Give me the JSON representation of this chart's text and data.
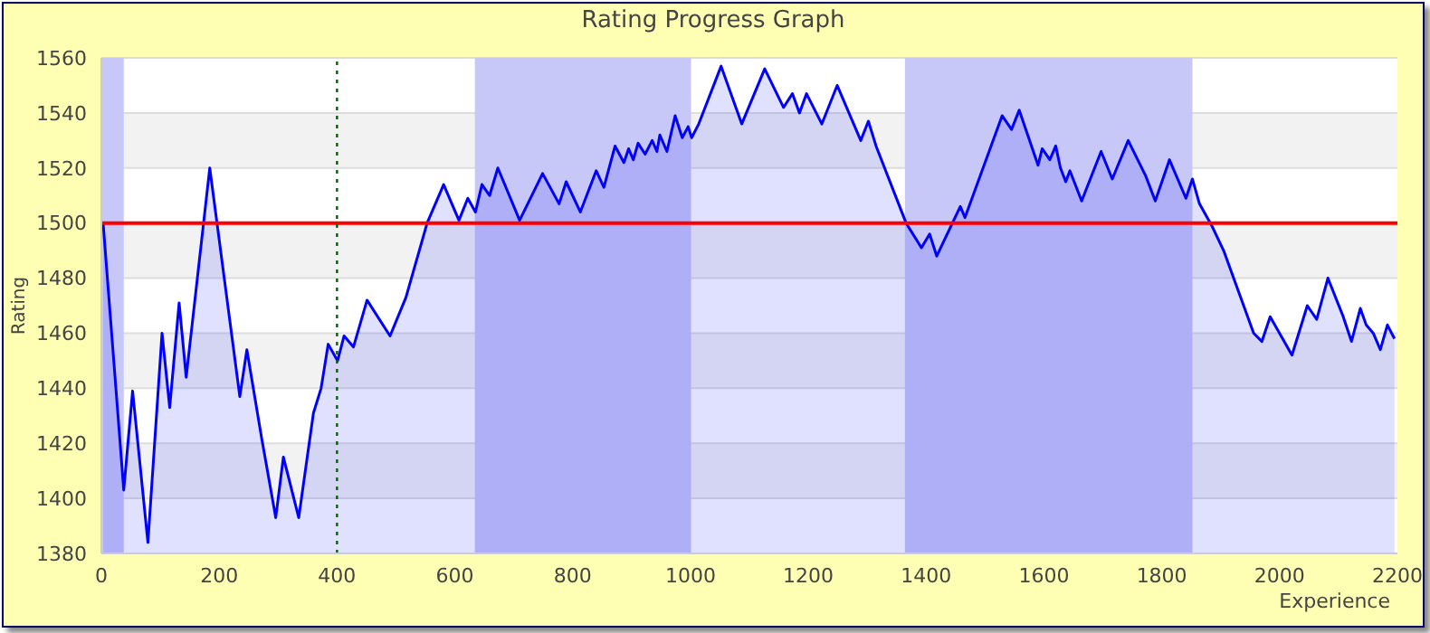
{
  "chart_data": {
    "type": "area",
    "title": "Rating Progress Graph",
    "xlabel": "Experience",
    "ylabel": "Rating",
    "xlim": [
      0,
      2200
    ],
    "xticks": [
      0,
      200,
      400,
      600,
      800,
      1000,
      1200,
      1400,
      1600,
      1800,
      2000,
      2200
    ],
    "ylim": [
      1380,
      1560
    ],
    "yticks": [
      1380,
      1400,
      1420,
      1440,
      1460,
      1480,
      1500,
      1520,
      1540,
      1560
    ],
    "grid": "y",
    "legend": false,
    "marker": "none",
    "line_style": "solid",
    "series": [
      {
        "color": "#0000ff",
        "x": [
          3,
          38,
          53,
          79,
          103,
          116,
          132,
          144,
          184,
          235,
          247,
          272,
          296,
          309,
          335,
          360,
          373,
          385,
          401,
          412,
          428,
          451,
          490,
          517,
          553,
          581,
          607,
          622,
          635,
          646,
          659,
          673,
          710,
          749,
          777,
          789,
          813,
          840,
          853,
          872,
          887,
          895,
          903,
          911,
          923,
          935,
          943,
          948,
          960,
          974,
          986,
          996,
          1002,
          1014,
          1052,
          1087,
          1126,
          1158,
          1173,
          1185,
          1197,
          1223,
          1249,
          1289,
          1302,
          1315,
          1366,
          1392,
          1406,
          1418,
          1458,
          1466,
          1529,
          1545,
          1558,
          1590,
          1597,
          1610,
          1620,
          1628,
          1637,
          1644,
          1664,
          1697,
          1716,
          1743,
          1773,
          1789,
          1813,
          1841,
          1852,
          1864,
          1885,
          1905,
          1956,
          1970,
          1984,
          2021,
          2047,
          2063,
          2082,
          2108,
          2122,
          2137,
          2147,
          2159,
          2171,
          2183,
          2195
        ],
        "values": [
          1500,
          1403,
          1439,
          1384,
          1460,
          1433,
          1471,
          1444,
          1520,
          1437,
          1454,
          1422,
          1393,
          1415,
          1393,
          1431,
          1440,
          1456,
          1450,
          1459,
          1455,
          1472,
          1459,
          1473,
          1500,
          1514,
          1501,
          1509,
          1504,
          1514,
          1510,
          1520,
          1501,
          1518,
          1507,
          1515,
          1504,
          1519,
          1513,
          1528,
          1522,
          1527,
          1523,
          1529,
          1525,
          1530,
          1526,
          1532,
          1526,
          1539,
          1531,
          1535,
          1531,
          1536,
          1557,
          1536,
          1556,
          1542,
          1547,
          1540,
          1547,
          1536,
          1550,
          1530,
          1537,
          1528,
          1500,
          1491,
          1496,
          1488,
          1506,
          1502,
          1539,
          1534,
          1541,
          1521,
          1527,
          1523,
          1528,
          1520,
          1515,
          1519,
          1508,
          1526,
          1516,
          1530,
          1517,
          1508,
          1523,
          1509,
          1516,
          1507,
          1499,
          1490,
          1460,
          1457,
          1466,
          1452,
          1470,
          1465,
          1480,
          1466,
          1457,
          1469,
          1463,
          1460,
          1454,
          1463,
          1458
        ]
      }
    ],
    "ref_lines": [
      {
        "axis": "y",
        "value": 1500,
        "color": "#ff0000",
        "line_style": "solid"
      },
      {
        "axis": "x",
        "value": 400,
        "color": "#006600",
        "line_style": "dotted"
      }
    ],
    "bands": [
      {
        "axis": "x",
        "from": 0,
        "to": 38,
        "color": "#c8c8f8"
      },
      {
        "axis": "x",
        "from": 634,
        "to": 1001,
        "color": "#c8c8f8"
      },
      {
        "axis": "x",
        "from": 1364,
        "to": 1852,
        "color": "#c8c8f8"
      }
    ]
  }
}
